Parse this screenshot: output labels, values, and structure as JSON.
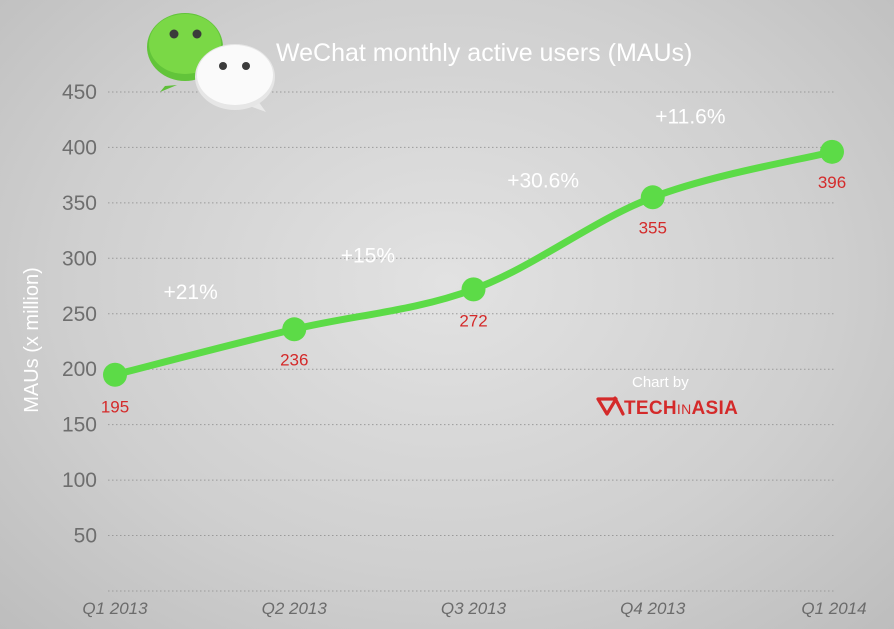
{
  "chart_data": {
    "type": "line",
    "title": "WeChat monthly active users (MAUs)",
    "xlabel": "",
    "ylabel": "MAUs (x million)",
    "categories": [
      "Q1 2013",
      "Q2 2013",
      "Q3 2013",
      "Q4 2013",
      "Q1 2014"
    ],
    "values": [
      195,
      236,
      272,
      355,
      396
    ],
    "data_labels": [
      "195",
      "236",
      "272",
      "355",
      "396"
    ],
    "growth_labels": [
      "+21%",
      "+15%",
      "+30.6%",
      "+11.6%"
    ],
    "yticks": [
      50,
      100,
      150,
      200,
      250,
      300,
      350,
      400,
      450
    ],
    "ylim": [
      0,
      450
    ],
    "grid": true,
    "grid_style": "dotted horizontal",
    "legend": "none",
    "line_color": "#5cdb47",
    "label_color": "#d42a2a"
  },
  "credit": {
    "text": "Chart by",
    "brand_text": "TECHINASIA",
    "brand_parts": [
      "TECH",
      "IN",
      "ASIA"
    ]
  },
  "icons": [
    "wechat-logo-icon",
    "techinasia-logo-icon"
  ]
}
